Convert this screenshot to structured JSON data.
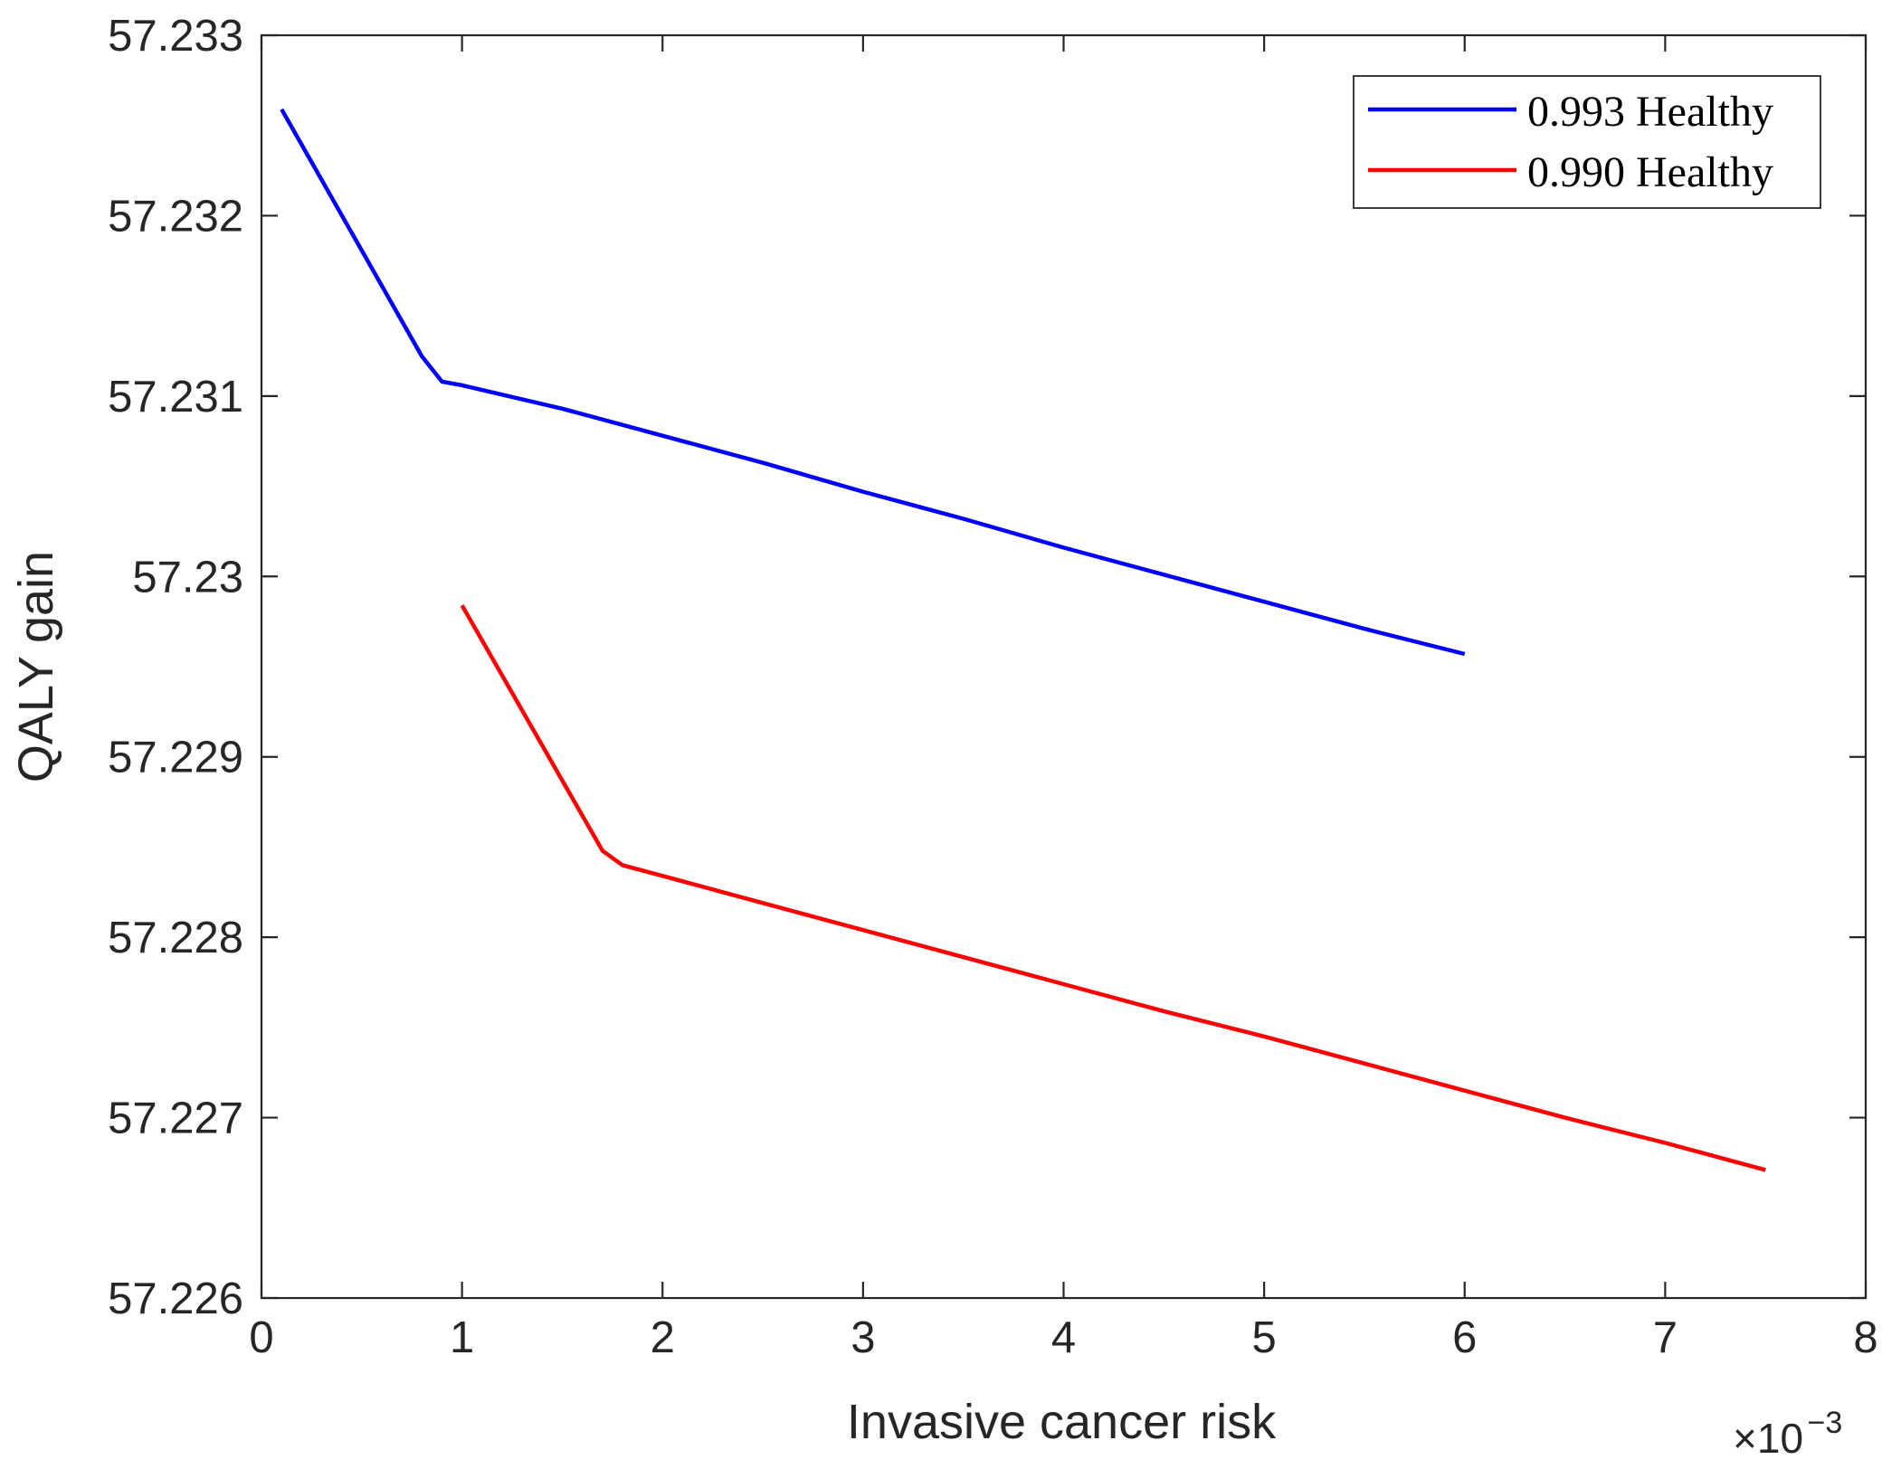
{
  "chart_data": {
    "type": "line",
    "title": "",
    "xlabel": "Invasive cancer risk",
    "ylabel": "QALY gain",
    "x_exponent": {
      "base": "×10",
      "power": "−3"
    },
    "xlim": [
      0,
      8
    ],
    "ylim": [
      57.226,
      57.233
    ],
    "x_ticks": [
      0,
      1,
      2,
      3,
      4,
      5,
      6,
      7,
      8
    ],
    "x_tick_labels": [
      "0",
      "1",
      "2",
      "3",
      "4",
      "5",
      "6",
      "7",
      "8"
    ],
    "y_ticks": [
      57.226,
      57.227,
      57.228,
      57.229,
      57.23,
      57.231,
      57.232,
      57.233
    ],
    "y_tick_labels": [
      "57.226",
      "57.227",
      "57.228",
      "57.229",
      "57.23",
      "57.231",
      "57.232",
      "57.233"
    ],
    "grid": false,
    "legend_position": "top-right",
    "series": [
      {
        "name": "0.993 Healthy",
        "color": "#0000ff",
        "x": [
          0.1,
          0.8,
          0.9,
          1.0,
          1.5,
          2.0,
          2.5,
          3.0,
          3.5,
          4.0,
          4.5,
          5.0,
          5.5,
          6.0
        ],
        "y": [
          57.23259,
          57.23122,
          57.23108,
          57.23106,
          57.23093,
          57.23078,
          57.23063,
          57.23047,
          57.23032,
          57.23016,
          57.23001,
          57.22986,
          57.22971,
          57.22957
        ]
      },
      {
        "name": "0.990 Healthy",
        "color": "#ff0000",
        "x": [
          1.0,
          1.7,
          1.8,
          2.0,
          2.5,
          3.0,
          3.5,
          4.0,
          4.5,
          5.0,
          5.5,
          6.0,
          6.5,
          7.0,
          7.5
        ],
        "y": [
          57.22984,
          57.22848,
          57.2284,
          57.22834,
          57.22819,
          57.22804,
          57.22789,
          57.22774,
          57.22759,
          57.22745,
          57.2273,
          57.22715,
          57.227,
          57.22686,
          57.22671
        ]
      }
    ]
  }
}
